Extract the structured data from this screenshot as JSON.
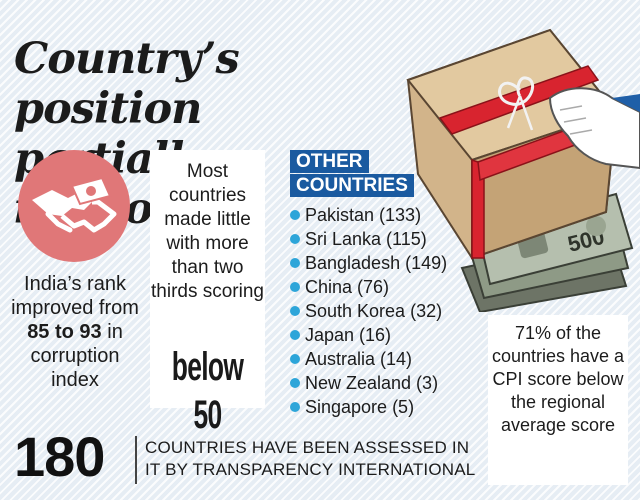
{
  "headline": {
    "line1": "Country’s position",
    "line2": "partially improves"
  },
  "rank_note": {
    "prefix": "India’s rank improved from ",
    "from": "85",
    "connector": " to 93",
    "suffix": " in corruption index"
  },
  "score_note": {
    "text": "Most countries made little with more than two thirds scoring",
    "highlight": "below 50"
  },
  "other_countries": {
    "heading_line1": "OTHER",
    "heading_line2": "COUNTRIES",
    "items": [
      {
        "label": "Pakistan (133)"
      },
      {
        "label": "Sri Lanka (115)"
      },
      {
        "label": "Bangladesh (149)"
      },
      {
        "label": "China (76)"
      },
      {
        "label": "South Korea (32)"
      },
      {
        "label": "Japan (16)"
      },
      {
        "label": "Australia (14)"
      },
      {
        "label": "New Zealand (3)"
      },
      {
        "label": "Singapore (5)"
      }
    ]
  },
  "cpi_note": {
    "text": "71% of the countries have a CPI score below the regional average score"
  },
  "footer": {
    "number": "180",
    "line1": "COUNTRIES HAVE BEEN ASSESSED IN",
    "line2": "IT BY TRANSPARENCY INTERNATIONAL"
  },
  "colors": {
    "accent_blue": "#1a5aa0",
    "bullet_blue": "#2da5d9",
    "icon_red": "#e07778"
  },
  "icons": {
    "handshake": "handshake-money-icon",
    "illustration": "parcel-with-banknotes-illustration"
  }
}
